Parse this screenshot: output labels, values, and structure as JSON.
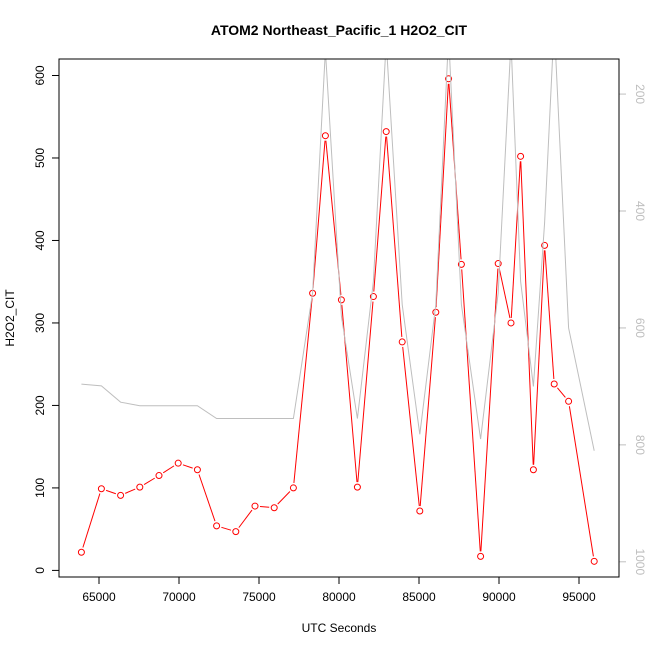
{
  "chart_data": {
    "type": "line",
    "title": "ATOM2 Northeast_Pacific_1 H2O2_CIT",
    "xlabel": "UTC Seconds",
    "ylabel": "H2O2_CIT",
    "xlim": [
      62500,
      97500
    ],
    "ylim": [
      -8,
      620
    ],
    "x_ticks": [
      65000,
      70000,
      75000,
      80000,
      85000,
      90000,
      95000
    ],
    "y_ticks": [
      0,
      100,
      200,
      300,
      400,
      500,
      600
    ],
    "y2_ticks": [
      200,
      400,
      600,
      800,
      1000
    ],
    "y2lim": [
      1026,
      140
    ],
    "series": [
      {
        "color": "#ff0000",
        "axis": "left",
        "markers": true,
        "x": [
          63900,
          65150,
          66350,
          67550,
          68750,
          69950,
          71150,
          72350,
          73550,
          74750,
          75950,
          77150,
          78350,
          79150,
          80150,
          81150,
          82150,
          82950,
          83950,
          85050,
          86050,
          86850,
          87650,
          88850,
          89950,
          90750,
          91350,
          92150,
          92850,
          93450,
          94350,
          95950
        ],
        "values": [
          22,
          99,
          91,
          101,
          115,
          130,
          122,
          54,
          47,
          78,
          76,
          100,
          336,
          527,
          328,
          101,
          332,
          532,
          277,
          72,
          313,
          596,
          371,
          17,
          372,
          300,
          502,
          122,
          394,
          226,
          205,
          11
        ]
      },
      {
        "color": "#bebebe",
        "axis": "right",
        "markers": false,
        "x": [
          63900,
          65150,
          66350,
          67550,
          68750,
          69950,
          71150,
          72350,
          73550,
          74750,
          75950,
          77150,
          78350,
          79150,
          80150,
          81150,
          82150,
          82950,
          83950,
          85050,
          86050,
          86850,
          87650,
          88850,
          89950,
          90750,
          91350,
          92150,
          92850,
          93450,
          94350,
          95950
        ],
        "values": [
          696,
          699,
          727,
          733,
          733,
          733,
          733,
          755,
          755,
          755,
          755,
          755,
          540,
          125,
          580,
          755,
          520,
          110,
          560,
          782,
          560,
          100,
          560,
          790,
          540,
          110,
          520,
          700,
          420,
          80,
          600,
          810
        ]
      }
    ]
  }
}
